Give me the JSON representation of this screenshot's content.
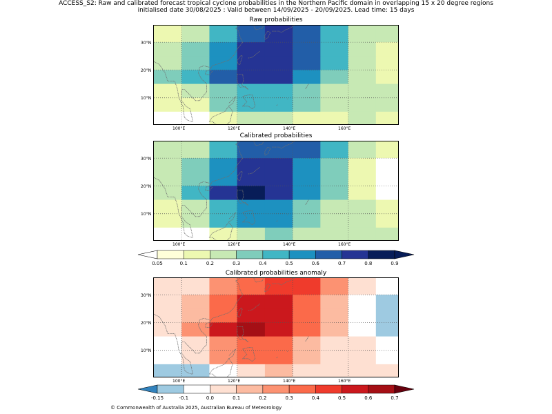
{
  "title_line1": "ACCESS_S2: Raw and calibrated forecast tropical cyclone probabilities in the Northern Pacific domain in overlapping 15 x 20 degree regions",
  "title_line2": "initialised date 30/08/2025 :  Valid between 14/09/2025 - 20/09/2025. Lead time: 15 days",
  "copyright": "© Commonwealth of Australia 2025, Australian Bureau of Meteorology",
  "chart_data": [
    {
      "type": "heatmap",
      "title": "Raw probabilities",
      "x": [
        90,
        100,
        110,
        120,
        130,
        140,
        150,
        160,
        170
      ],
      "y": [
        36,
        30,
        25,
        20,
        15,
        10,
        5,
        0
      ],
      "xticks": [
        "100°E",
        "120°E",
        "140°E",
        "160°E"
      ],
      "yticks": [
        "30°N",
        "20°N",
        "10°N"
      ],
      "values": [
        [
          0.1,
          0.2,
          0.4,
          0.6,
          0.7,
          0.6,
          0.4,
          0.2,
          0.2
        ],
        [
          0.2,
          0.3,
          0.5,
          0.7,
          0.7,
          0.6,
          0.4,
          0.2,
          0.1
        ],
        [
          0.2,
          0.3,
          0.5,
          0.7,
          0.7,
          0.6,
          0.4,
          0.2,
          0.1
        ],
        [
          0.3,
          0.4,
          0.6,
          0.7,
          0.7,
          0.5,
          0.3,
          0.2,
          0.1
        ],
        [
          0.1,
          0.2,
          0.3,
          0.4,
          0.4,
          0.3,
          0.2,
          0.2,
          0.2
        ],
        [
          0.1,
          0.1,
          0.3,
          0.4,
          0.4,
          0.3,
          0.2,
          0.2,
          0.2
        ],
        [
          0.0,
          0.0,
          0.1,
          0.2,
          0.2,
          0.1,
          0.1,
          0.2,
          0.1
        ]
      ]
    },
    {
      "type": "heatmap",
      "title": "Calibrated probabilities",
      "x": [
        90,
        100,
        110,
        120,
        130,
        140,
        150,
        160,
        170
      ],
      "y": [
        36,
        30,
        25,
        20,
        15,
        10,
        5,
        0
      ],
      "xticks": [
        "100°E",
        "120°E",
        "140°E",
        "160°E"
      ],
      "yticks": [
        "30°N",
        "20°N",
        "10°N"
      ],
      "values": [
        [
          0.2,
          0.2,
          0.4,
          0.6,
          0.6,
          0.6,
          0.4,
          0.2,
          0.1
        ],
        [
          0.2,
          0.3,
          0.5,
          0.7,
          0.7,
          0.5,
          0.3,
          0.1,
          0.0
        ],
        [
          0.2,
          0.3,
          0.5,
          0.7,
          0.7,
          0.5,
          0.3,
          0.1,
          0.0
        ],
        [
          0.2,
          0.4,
          0.7,
          0.8,
          0.7,
          0.5,
          0.3,
          0.1,
          0.0
        ],
        [
          0.1,
          0.2,
          0.4,
          0.5,
          0.5,
          0.3,
          0.2,
          0.2,
          0.1
        ],
        [
          0.1,
          0.2,
          0.4,
          0.5,
          0.5,
          0.3,
          0.2,
          0.2,
          0.1
        ],
        [
          0.0,
          0.0,
          0.1,
          0.2,
          0.3,
          0.2,
          0.2,
          0.2,
          0.2
        ]
      ]
    },
    {
      "type": "heatmap",
      "title": "Calibrated probabilities anomaly",
      "x": [
        90,
        100,
        110,
        120,
        130,
        140,
        150,
        160,
        170
      ],
      "y": [
        36,
        30,
        25,
        20,
        15,
        10,
        5,
        0
      ],
      "xticks": [
        "100°E",
        "120°E",
        "140°E",
        "160°E"
      ],
      "yticks": [
        "30°N",
        "20°N",
        "10°N"
      ],
      "values": [
        [
          0.0,
          0.0,
          0.2,
          0.3,
          0.4,
          0.4,
          0.2,
          0.0,
          -0.1
        ],
        [
          0.0,
          0.1,
          0.3,
          0.5,
          0.5,
          0.3,
          0.1,
          -0.1,
          -0.15
        ],
        [
          0.0,
          0.1,
          0.3,
          0.5,
          0.5,
          0.3,
          0.1,
          -0.1,
          -0.15
        ],
        [
          0.0,
          0.2,
          0.5,
          0.6,
          0.5,
          0.3,
          0.1,
          -0.1,
          -0.15
        ],
        [
          -0.1,
          0.0,
          0.2,
          0.3,
          0.3,
          0.1,
          0.0,
          0.0,
          -0.1
        ],
        [
          -0.1,
          0.0,
          0.2,
          0.3,
          0.3,
          0.1,
          0.0,
          0.0,
          -0.1
        ],
        [
          -0.15,
          -0.15,
          -0.1,
          0.0,
          0.1,
          0.0,
          0.0,
          0.0,
          0.0
        ]
      ]
    }
  ],
  "colorbars": [
    {
      "boundaries": [
        0.05,
        0.1,
        0.2,
        0.3,
        0.4,
        0.5,
        0.6,
        0.7,
        0.8,
        0.9
      ],
      "labels": [
        "0.05",
        "0.1",
        "0.2",
        "0.3",
        "0.4",
        "0.5",
        "0.6",
        "0.7",
        "0.8",
        "0.9"
      ],
      "colors": [
        "#ffffd9",
        "#edf8b1",
        "#c7e9b4",
        "#7fcdbb",
        "#41b6c4",
        "#1d91c0",
        "#225ea8",
        "#253494",
        "#081d58"
      ],
      "under": "#ffffff",
      "over": "#081d58"
    },
    {
      "boundaries": [
        -0.15,
        -0.1,
        0.0,
        0.1,
        0.2,
        0.3,
        0.4,
        0.5,
        0.6,
        0.7
      ],
      "labels": [
        "-0.15",
        "-0.1",
        "0.0",
        "0.1",
        "0.2",
        "0.3",
        "0.4",
        "0.5",
        "0.6",
        "0.7"
      ],
      "colors": [
        "#9ecae1",
        "#ffffff",
        "#fee0d2",
        "#fcbba1",
        "#fc9272",
        "#fb6a4a",
        "#ef3b2c",
        "#cb181d",
        "#a50f15"
      ],
      "under": "#3182bd",
      "over": "#67000d"
    }
  ]
}
